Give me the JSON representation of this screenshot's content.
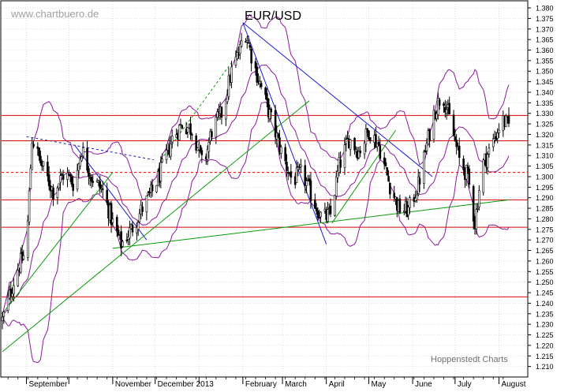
{
  "watermark": "www.chartbuero.de",
  "source_label": "Hoppenstedt Charts",
  "colors": {
    "background": "#ffffff",
    "grid": "#c8c8c8",
    "candles": "#000000",
    "bollinger": "#8a1a9b",
    "resistance_lines": "#e00000",
    "trend_blue": "#1a1acd",
    "trend_green": "#0a9a0a",
    "text": "#000000",
    "watermark_text": "#a0a0a0"
  },
  "chart_data": {
    "type": "candlestick",
    "title": "EUR/USD",
    "y_axis": {
      "min": 1.205,
      "max": 1.383,
      "tick_start": 1.21,
      "tick_end": 1.38,
      "tick_step": 0.005,
      "position": "right",
      "grid": true
    },
    "x_axis": {
      "month_labels": [
        "September",
        "November",
        "December 2013",
        "February",
        "March",
        "April",
        "May",
        "June",
        "July",
        "August"
      ],
      "month_starts": [
        "2013-09-01",
        "2013-10-01",
        "2013-11-01",
        "2013-12-01",
        "2014-01-01",
        "2014-02-01",
        "2014-03-01",
        "2014-04-01",
        "2014-05-01",
        "2014-06-01",
        "2014-07-01",
        "2014-08-01"
      ],
      "labeled_month_starts": [
        "2013-09-01",
        "2013-11-01",
        "2013-12-01",
        "2014-02-01",
        "2014-03-01",
        "2014-04-01",
        "2014-05-01",
        "2014-06-01",
        "2014-07-01",
        "2014-08-01"
      ],
      "date_range": [
        "2013-08-15",
        "2014-08-08"
      ]
    },
    "price_path": [
      [
        "2013-08-15",
        1.232
      ],
      [
        "2013-08-25",
        1.255
      ],
      [
        "2013-09-01",
        1.265
      ],
      [
        "2013-09-05",
        1.318
      ],
      [
        "2013-09-12",
        1.305
      ],
      [
        "2013-09-20",
        1.293
      ],
      [
        "2013-09-28",
        1.302
      ],
      [
        "2013-10-05",
        1.296
      ],
      [
        "2013-10-10",
        1.313
      ],
      [
        "2013-10-17",
        1.3
      ],
      [
        "2013-10-25",
        1.293
      ],
      [
        "2013-11-01",
        1.278
      ],
      [
        "2013-11-07",
        1.268
      ],
      [
        "2013-11-15",
        1.276
      ],
      [
        "2013-11-22",
        1.285
      ],
      [
        "2013-11-29",
        1.293
      ],
      [
        "2013-12-06",
        1.304
      ],
      [
        "2013-12-13",
        1.318
      ],
      [
        "2013-12-20",
        1.325
      ],
      [
        "2013-12-28",
        1.322
      ],
      [
        "2014-01-04",
        1.304
      ],
      [
        "2014-01-10",
        1.322
      ],
      [
        "2014-01-17",
        1.33
      ],
      [
        "2014-01-24",
        1.35
      ],
      [
        "2014-01-30",
        1.36
      ],
      [
        "2014-02-02",
        1.371
      ],
      [
        "2014-02-08",
        1.355
      ],
      [
        "2014-02-15",
        1.34
      ],
      [
        "2014-02-22",
        1.325
      ],
      [
        "2014-03-01",
        1.31
      ],
      [
        "2014-03-08",
        1.298
      ],
      [
        "2014-03-15",
        1.302
      ],
      [
        "2014-03-22",
        1.29
      ],
      [
        "2014-03-29",
        1.28
      ],
      [
        "2014-04-04",
        1.282
      ],
      [
        "2014-04-10",
        1.305
      ],
      [
        "2014-04-17",
        1.318
      ],
      [
        "2014-04-24",
        1.312
      ],
      [
        "2014-05-01",
        1.322
      ],
      [
        "2014-05-08",
        1.315
      ],
      [
        "2014-05-15",
        1.298
      ],
      [
        "2014-05-22",
        1.285
      ],
      [
        "2014-05-29",
        1.284
      ],
      [
        "2014-06-05",
        1.296
      ],
      [
        "2014-06-10",
        1.312
      ],
      [
        "2014-06-16",
        1.33
      ],
      [
        "2014-06-22",
        1.34
      ],
      [
        "2014-06-28",
        1.325
      ],
      [
        "2014-07-04",
        1.308
      ],
      [
        "2014-07-10",
        1.3
      ],
      [
        "2014-07-15",
        1.278
      ],
      [
        "2014-07-20",
        1.305
      ],
      [
        "2014-07-27",
        1.315
      ],
      [
        "2014-08-03",
        1.327
      ],
      [
        "2014-08-08",
        1.324
      ]
    ],
    "horizontal_lines": [
      {
        "y": 1.329,
        "color": "red",
        "style": "solid"
      },
      {
        "y": 1.317,
        "color": "red",
        "style": "solid"
      },
      {
        "y": 1.302,
        "color": "red",
        "style": "dashed"
      },
      {
        "y": 1.289,
        "color": "red",
        "style": "solid"
      },
      {
        "y": 1.276,
        "color": "red",
        "style": "solid"
      },
      {
        "y": 1.243,
        "color": "red",
        "style": "solid"
      }
    ],
    "trend_lines": [
      {
        "color": "blue",
        "style": "solid",
        "from": [
          "2014-02-01",
          1.373
        ],
        "to": [
          "2014-06-15",
          1.3
        ]
      },
      {
        "color": "blue",
        "style": "solid",
        "from": [
          "2014-02-01",
          1.373
        ],
        "to": [
          "2014-04-01",
          1.268
        ]
      },
      {
        "color": "blue",
        "style": "dashed",
        "from": [
          "2013-09-01",
          1.319
        ],
        "to": [
          "2013-11-30",
          1.308
        ]
      },
      {
        "color": "blue",
        "style": "solid",
        "from": [
          "2013-10-05",
          1.315
        ],
        "to": [
          "2013-11-25",
          1.27
        ]
      },
      {
        "color": "green",
        "style": "solid",
        "from": [
          "2013-08-15",
          1.217
        ],
        "to": [
          "2014-03-20",
          1.336
        ]
      },
      {
        "color": "green",
        "style": "solid",
        "from": [
          "2013-08-15",
          1.235
        ],
        "to": [
          "2013-11-01",
          1.302
        ]
      },
      {
        "color": "green",
        "style": "solid",
        "from": [
          "2013-11-01",
          1.266
        ],
        "to": [
          "2014-08-08",
          1.289
        ]
      },
      {
        "color": "green",
        "style": "solid",
        "from": [
          "2014-04-05",
          1.278
        ],
        "to": [
          "2014-05-20",
          1.322
        ]
      },
      {
        "color": "green",
        "style": "dashed",
        "from": [
          "2013-12-05",
          1.308
        ],
        "to": [
          "2014-01-25",
          1.355
        ]
      }
    ],
    "bollinger_bands": {
      "window": 20,
      "deviations": 2,
      "color": "purple"
    },
    "last_price": 1.324
  }
}
